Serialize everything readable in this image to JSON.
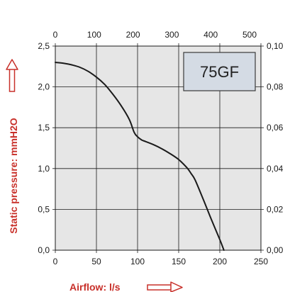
{
  "chart_data": {
    "type": "line",
    "title": "",
    "model_label": "75GF",
    "xlabel": "Airflow: l/s",
    "ylabel": "Static pressure: mmH2O",
    "x_ticks": [
      "0",
      "50",
      "100",
      "150",
      "200",
      "250"
    ],
    "y_ticks": [
      "0,0",
      "0,5",
      "1,0",
      "1,5",
      "2,0",
      "2,5"
    ],
    "top_ticks": [
      "0",
      "100",
      "200",
      "300",
      "400",
      "500"
    ],
    "right_ticks": [
      "0,00",
      "0,02",
      "0,04",
      "0,06",
      "0,08",
      "0,10"
    ],
    "xlim": [
      0,
      250
    ],
    "ylim": [
      0,
      2.5
    ],
    "grid": true,
    "series": [
      {
        "x": [
          0,
          10,
          20,
          30,
          40,
          50,
          60,
          70,
          80,
          90,
          96,
          100,
          105,
          110,
          120,
          130,
          140,
          150,
          160,
          165,
          170,
          180,
          190,
          200,
          205
        ],
        "y": [
          2.3,
          2.29,
          2.27,
          2.24,
          2.19,
          2.12,
          2.03,
          1.91,
          1.77,
          1.6,
          1.44,
          1.39,
          1.35,
          1.33,
          1.29,
          1.24,
          1.18,
          1.11,
          1.01,
          0.94,
          0.86,
          0.62,
          0.37,
          0.13,
          0.0
        ]
      }
    ]
  },
  "colors": {
    "plot_background": "#e6e6e6",
    "grid": "#1a1a1a",
    "curve": "#1a1a1a",
    "axis_title": "#c8302a",
    "label_box_fill": "#d4dbe4"
  }
}
